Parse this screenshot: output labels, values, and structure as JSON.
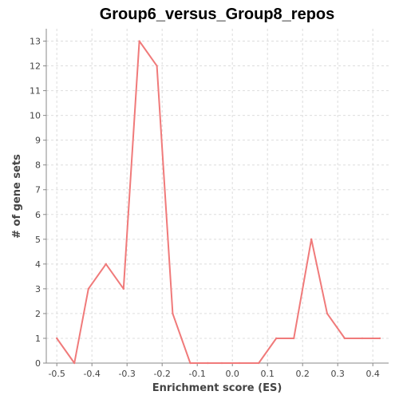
{
  "chart_data": {
    "type": "line",
    "title": "Group6_versus_Group8_repos",
    "xlabel": "Enrichment score (ES)",
    "ylabel": "# of gene sets",
    "xlim": [
      -0.53,
      0.445
    ],
    "ylim": [
      0,
      13.5
    ],
    "xticks": [
      -0.5,
      -0.4,
      -0.3,
      -0.2,
      -0.1,
      0.0,
      0.1,
      0.2,
      0.3,
      0.4
    ],
    "xtick_labels": [
      "-0.5",
      "-0.4",
      "-0.3",
      "-0.2",
      "-0.1",
      "0.0",
      "0.1",
      "0.2",
      "0.3",
      "0.4"
    ],
    "yticks": [
      0,
      1,
      2,
      3,
      4,
      5,
      6,
      7,
      8,
      9,
      10,
      11,
      12,
      13
    ],
    "ytick_labels": [
      "0",
      "1",
      "2",
      "3",
      "4",
      "5",
      "6",
      "7",
      "8",
      "9",
      "10",
      "11",
      "12",
      "13"
    ],
    "grid": true,
    "legend": "none",
    "series_color": "#f07a7a",
    "series": [
      {
        "x": [
          -0.5,
          -0.45,
          -0.41,
          -0.36,
          -0.31,
          -0.265,
          -0.215,
          -0.17,
          -0.12,
          -0.07,
          -0.03,
          0.02,
          0.075,
          0.125,
          0.175,
          0.225,
          0.27,
          0.32,
          0.37,
          0.42
        ],
        "y": [
          1,
          0,
          3,
          4,
          3,
          13,
          12,
          2,
          0,
          0,
          0,
          0,
          0,
          1,
          1,
          5,
          2,
          1,
          1,
          1
        ]
      }
    ]
  }
}
